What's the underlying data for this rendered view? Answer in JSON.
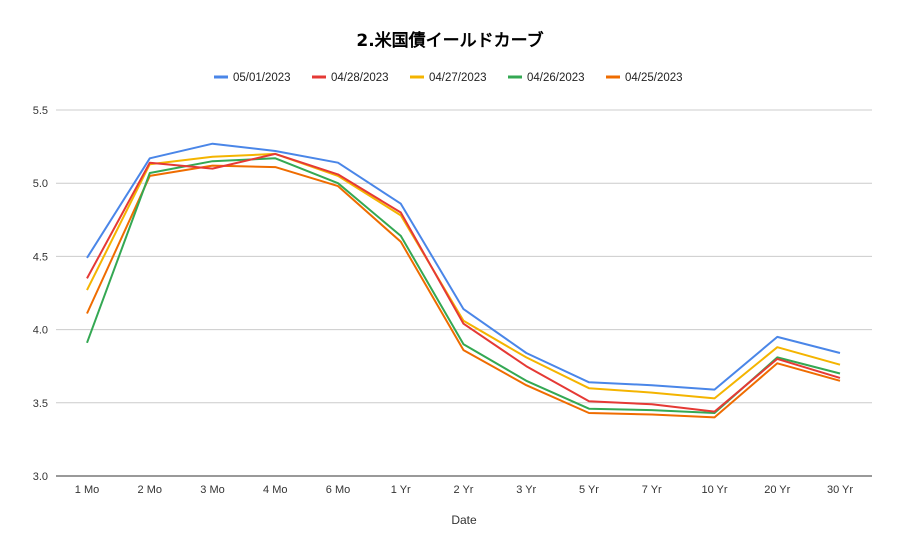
{
  "chart_data": {
    "type": "line",
    "title": "2.米国債イールドカーブ",
    "xlabel": "Date",
    "ylabel": "",
    "ylim": [
      3.0,
      5.5
    ],
    "yticks": [
      "3.0",
      "3.5",
      "4.0",
      "4.5",
      "5.0",
      "5.5"
    ],
    "grid": true,
    "legend_position": "top",
    "categories": [
      "1 Mo",
      "2 Mo",
      "3 Mo",
      "4 Mo",
      "6 Mo",
      "1 Yr",
      "2 Yr",
      "3 Yr",
      "5 Yr",
      "7 Yr",
      "10 Yr",
      "20 Yr",
      "30 Yr"
    ],
    "series": [
      {
        "name": "05/01/2023",
        "color": "#4a86e8",
        "values": [
          4.49,
          5.17,
          5.27,
          5.22,
          5.14,
          4.86,
          4.14,
          3.84,
          3.64,
          3.62,
          3.59,
          3.95,
          3.84
        ]
      },
      {
        "name": "04/28/2023",
        "color": "#e53935",
        "values": [
          4.35,
          5.14,
          5.1,
          5.2,
          5.06,
          4.8,
          4.04,
          3.75,
          3.51,
          3.49,
          3.44,
          3.8,
          3.67
        ]
      },
      {
        "name": "04/27/2023",
        "color": "#f4b400",
        "values": [
          4.27,
          5.13,
          5.18,
          5.2,
          5.05,
          4.78,
          4.06,
          3.81,
          3.6,
          3.57,
          3.53,
          3.88,
          3.76
        ]
      },
      {
        "name": "04/26/2023",
        "color": "#34a853",
        "values": [
          3.91,
          5.07,
          5.15,
          5.17,
          5.0,
          4.64,
          3.9,
          3.65,
          3.46,
          3.45,
          3.43,
          3.81,
          3.7
        ]
      },
      {
        "name": "04/25/2023",
        "color": "#ef6c00",
        "values": [
          4.11,
          5.05,
          5.12,
          5.11,
          4.98,
          4.6,
          3.86,
          3.62,
          3.43,
          3.42,
          3.4,
          3.77,
          3.65
        ]
      }
    ]
  }
}
